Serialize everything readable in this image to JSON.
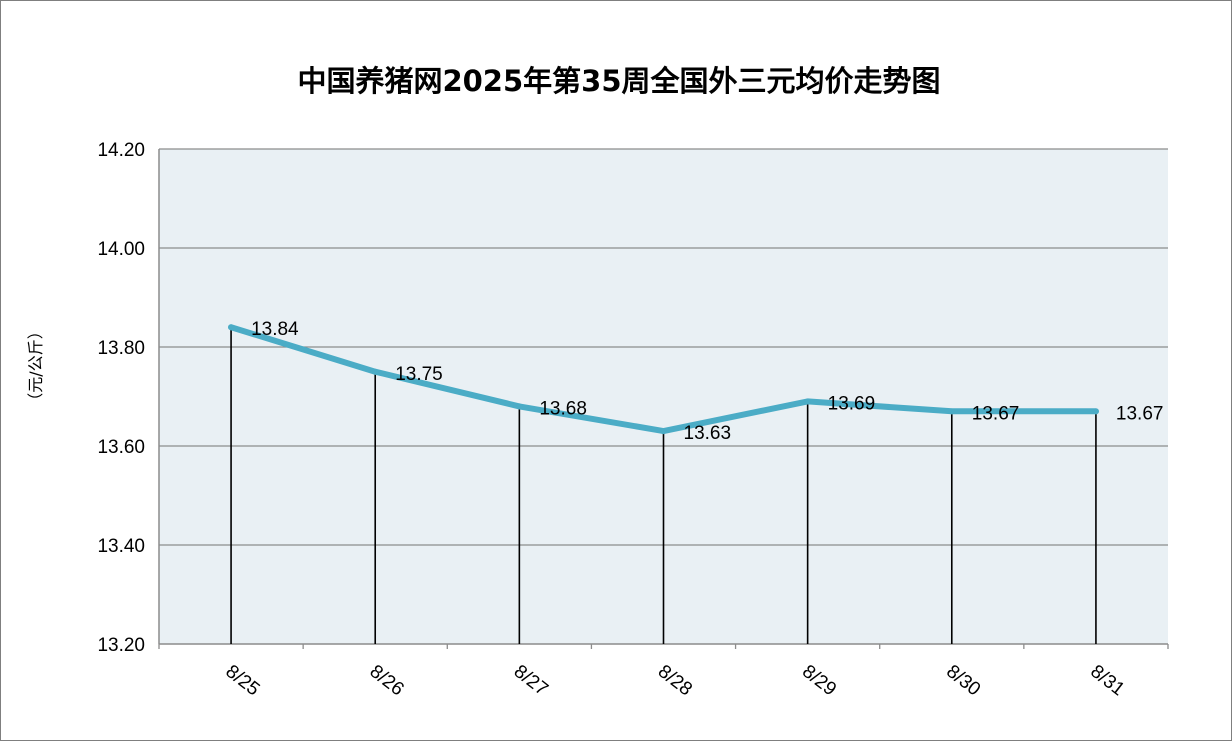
{
  "chart_data": {
    "type": "line",
    "title": "中国养猪网2025年第35周全国外三元均价走势图",
    "ylabel": "（元/公斤）",
    "xlabel": "",
    "categories": [
      "8/25",
      "8/26",
      "8/27",
      "8/28",
      "8/29",
      "8/30",
      "8/31"
    ],
    "series": [
      {
        "values": [
          13.84,
          13.75,
          13.68,
          13.63,
          13.69,
          13.67,
          13.67
        ]
      }
    ],
    "data_labels": [
      "13.84",
      "13.75",
      "13.68",
      "13.63",
      "13.69",
      "13.67",
      "13.67"
    ],
    "y_ticks": [
      "14.20",
      "14.00",
      "13.80",
      "13.60",
      "13.40",
      "13.20"
    ],
    "ylim": [
      13.2,
      14.2
    ],
    "grid": true,
    "drop_lines": true,
    "legend": "none",
    "colors": {
      "line": "#4bacc6",
      "plot_background": "#e9f0f4",
      "gridline": "#8c8c8c",
      "drop_line": "#000000"
    }
  }
}
